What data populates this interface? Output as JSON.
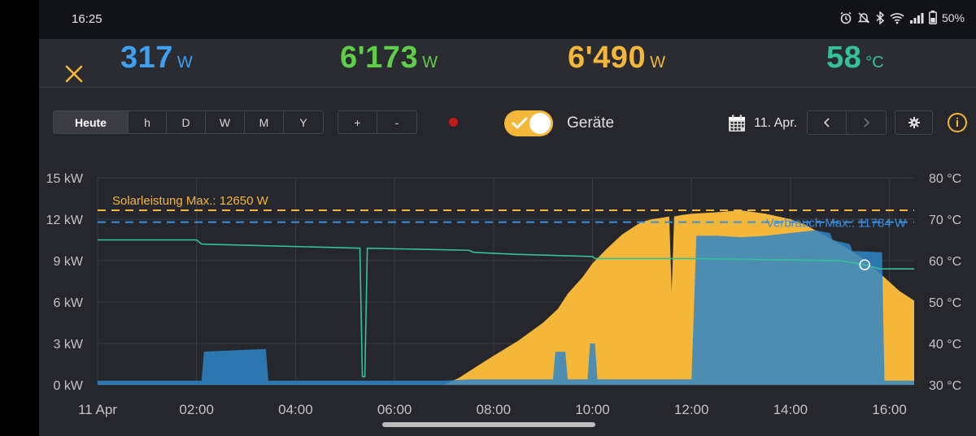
{
  "status_bar": {
    "time": "16:25",
    "battery": "50%",
    "icons": [
      "alarm-icon",
      "mute-icon",
      "bluetooth-icon",
      "wifi-icon",
      "signal-icon",
      "battery-icon"
    ]
  },
  "metrics": [
    {
      "value": "317",
      "unit": "W",
      "color": "#3f9ff0"
    },
    {
      "value": "6'173",
      "unit": "W",
      "color": "#5fcf4a"
    },
    {
      "value": "6'490",
      "unit": "W",
      "color": "#f5b73a"
    },
    {
      "value": "58",
      "unit": "°C",
      "color": "#33c29c"
    }
  ],
  "toolbar": {
    "periods": [
      "Heute",
      "h",
      "D",
      "W",
      "M",
      "Y"
    ],
    "active_period": "Heute",
    "zoom": [
      "+",
      "-"
    ],
    "toggle_label": "Geräte",
    "toggle_on": true,
    "date": "11. Apr.",
    "nav_prev": "‹",
    "nav_next": "›",
    "info": "i"
  },
  "chart_data": {
    "type": "area",
    "y_left_ticks": [
      "0 kW",
      "3 kW",
      "6 kW",
      "9 kW",
      "12 kW",
      "15 kW"
    ],
    "y_left_range": [
      0,
      15
    ],
    "y_right_ticks": [
      "30 °C",
      "40 °C",
      "50 °C",
      "60 °C",
      "70 °C",
      "80 °C"
    ],
    "y_right_range": [
      30,
      80
    ],
    "x_ticks": [
      "11 Apr",
      "02:00",
      "04:00",
      "06:00",
      "08:00",
      "10:00",
      "12:00",
      "14:00",
      "16:00"
    ],
    "x_range_hours": [
      0,
      16.5
    ],
    "grid": true,
    "annotations": [
      {
        "text": "Solarleistung Max.: 12650 W",
        "value_kw": 12.65,
        "color": "#f5b73a"
      },
      {
        "text": "Verbrauch Max.: 11784 W",
        "value_kw": 11.784,
        "color": "#3a8fe0"
      }
    ],
    "series": [
      {
        "color": "#f5b73a",
        "x": [
          0,
          7.0,
          7.3,
          7.6,
          8.0,
          8.5,
          9.0,
          9.3,
          9.5,
          9.8,
          10.0,
          10.3,
          10.6,
          10.9,
          11.0,
          11.2,
          11.4,
          11.55,
          11.6,
          11.65,
          11.8,
          12.0,
          12.5,
          13.0,
          13.5,
          14.0,
          14.3,
          14.6,
          15.0,
          15.4,
          15.8,
          16.2,
          16.5
        ],
        "y": [
          0,
          0,
          0.5,
          1.2,
          2.1,
          3.2,
          4.5,
          5.5,
          6.6,
          7.8,
          8.8,
          9.9,
          10.9,
          11.6,
          11.8,
          12.0,
          12.1,
          12.2,
          6.8,
          12.2,
          12.3,
          12.4,
          12.5,
          12.65,
          12.4,
          12.0,
          11.6,
          11.0,
          10.2,
          9.3,
          8.1,
          6.8,
          6.1
        ]
      },
      {
        "color": "#2f86c8",
        "x": [
          0,
          2.1,
          2.15,
          3.4,
          3.45,
          7.0,
          7.5,
          9.2,
          9.25,
          9.45,
          9.5,
          9.9,
          9.95,
          10.05,
          10.1,
          11.9,
          12.0,
          12.1,
          12.5,
          13.0,
          13.5,
          14.0,
          14.5,
          14.8,
          14.85,
          15.2,
          15.25,
          15.85,
          15.9,
          16.5
        ],
        "y": [
          0.3,
          0.3,
          2.4,
          2.6,
          0.3,
          0.3,
          0.4,
          0.4,
          2.4,
          2.4,
          0.4,
          0.4,
          3.0,
          3.0,
          0.4,
          0.4,
          0.4,
          10.8,
          10.8,
          10.7,
          10.8,
          11.0,
          11.2,
          11.0,
          10.5,
          10.2,
          9.7,
          9.6,
          0.3,
          0.3
        ]
      },
      {
        "color": "#33c29c",
        "x": [
          0,
          2.0,
          2.1,
          5.3,
          5.35,
          5.4,
          5.45,
          7.5,
          7.6,
          8.5,
          10.0,
          10.05,
          11.9,
          12.0,
          15.0,
          15.5,
          15.8,
          16.5
        ],
        "y": [
          65,
          65,
          64,
          63,
          32,
          32,
          63,
          62.5,
          62,
          61.5,
          61.0,
          60.5,
          60.5,
          60.5,
          60.0,
          59.0,
          58.0,
          58.0
        ]
      }
    ]
  }
}
